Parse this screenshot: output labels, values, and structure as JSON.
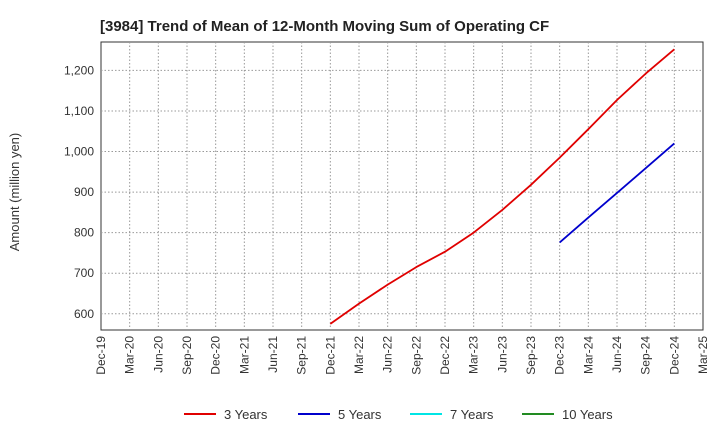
{
  "chart_data": {
    "type": "line",
    "title": "[3984]  Trend of Mean of 12-Month Moving Sum of Operating CF",
    "xlabel": "",
    "ylabel": "Amount (million yen)",
    "x_ticks": [
      "Dec-19",
      "Mar-20",
      "Jun-20",
      "Sep-20",
      "Dec-20",
      "Mar-21",
      "Jun-21",
      "Sep-21",
      "Dec-21",
      "Mar-22",
      "Jun-22",
      "Sep-22",
      "Dec-22",
      "Mar-23",
      "Jun-23",
      "Sep-23",
      "Dec-23",
      "Mar-24",
      "Jun-24",
      "Sep-24",
      "Dec-24",
      "Mar-25"
    ],
    "y_ticks": [
      600,
      700,
      800,
      900,
      1000,
      1100,
      1200
    ],
    "y_tick_labels": [
      "600",
      "700",
      "800",
      "900",
      "1,000",
      "1,100",
      "1,200"
    ],
    "ylim": [
      560,
      1270
    ],
    "grid": true,
    "legend_position": "bottom",
    "series": [
      {
        "name": "3 Years",
        "color": "#e00000",
        "x": [
          "Dec-21",
          "Mar-22",
          "Jun-22",
          "Sep-22",
          "Dec-22",
          "Mar-23",
          "Jun-23",
          "Sep-23",
          "Dec-23",
          "Mar-24",
          "Jun-24",
          "Sep-24",
          "Dec-24"
        ],
        "values": [
          575,
          625,
          672,
          715,
          753,
          800,
          856,
          918,
          985,
          1055,
          1127,
          1192,
          1252
        ]
      },
      {
        "name": "5 Years",
        "color": "#0000cc",
        "x": [
          "Dec-23",
          "Mar-24",
          "Jun-24",
          "Sep-24",
          "Dec-24"
        ],
        "values": [
          776,
          837,
          898,
          959,
          1020
        ]
      },
      {
        "name": "7 Years",
        "color": "#00e5e5",
        "x": [],
        "values": []
      },
      {
        "name": "10 Years",
        "color": "#228b22",
        "x": [],
        "values": []
      }
    ]
  }
}
